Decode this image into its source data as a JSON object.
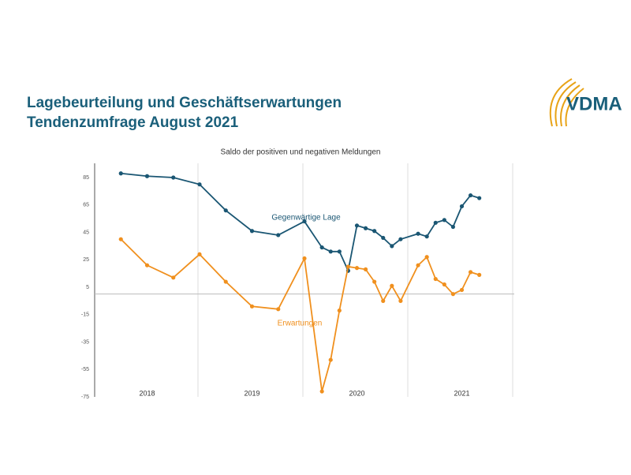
{
  "chart_data": {
    "type": "line",
    "title": "Lagebeurteilung und Geschäftserwartungen",
    "subtitle": "Tendenzumfrage August 2021",
    "chart_title": "Saldo der positiven und negativen Meldungen",
    "logo": "VDMA",
    "x": [
      3,
      6,
      9,
      12,
      15,
      18,
      21,
      24,
      26,
      27,
      28,
      29,
      30,
      31,
      32,
      33,
      34,
      35,
      37,
      38,
      39,
      40,
      41,
      42,
      43,
      44
    ],
    "xlim": [
      0,
      48
    ],
    "xticks": [
      {
        "value": 6,
        "label": "2018"
      },
      {
        "value": 18,
        "label": "2019"
      },
      {
        "value": 30,
        "label": "2020"
      },
      {
        "value": 42,
        "label": "2021"
      }
    ],
    "ylim": [
      -75,
      95
    ],
    "yticks": [
      85,
      65,
      45,
      25,
      5,
      -15,
      -35,
      -55,
      -75
    ],
    "series": [
      {
        "name": "Gegenwärtige Lage",
        "color": "#1a5673",
        "values": [
          88,
          86,
          85,
          80,
          61,
          46,
          43,
          53,
          34,
          31,
          31,
          17,
          50,
          48,
          46,
          41,
          35,
          40,
          44,
          42,
          52,
          54,
          49,
          64,
          72,
          70
        ]
      },
      {
        "name": "Erwartungen",
        "color": "#f0901e",
        "values": [
          40,
          21,
          12,
          29,
          9,
          -9,
          -11,
          26,
          -71,
          -48,
          -12,
          20,
          19,
          18,
          9,
          -5,
          6,
          -5,
          21,
          27,
          11,
          7,
          0,
          3,
          16,
          14
        ]
      }
    ]
  }
}
